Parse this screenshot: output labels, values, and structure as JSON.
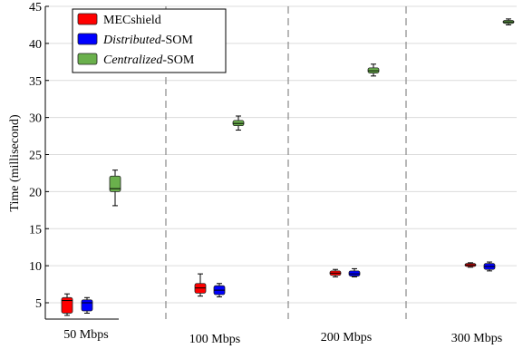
{
  "chart_data": {
    "type": "box",
    "ylabel": "Time (millisecond)",
    "xlabel": "",
    "ylim": [
      2.8,
      45
    ],
    "yticks": [
      5,
      10,
      15,
      20,
      25,
      30,
      35,
      40,
      45
    ],
    "grid": true,
    "legend_position": "top-left",
    "categories": [
      "50 Mbps",
      "100 Mbps",
      "200 Mbps",
      "300 Mbps"
    ],
    "series": [
      {
        "name": "MECshield",
        "name_parts": [
          {
            "text": "MECshield",
            "italic": false
          }
        ],
        "color": "#ff0000",
        "boxes": [
          {
            "min": 3.3,
            "q1": 3.6,
            "median": 5.3,
            "q3": 5.7,
            "max": 6.2
          },
          {
            "min": 5.9,
            "q1": 6.3,
            "median": 7.0,
            "q3": 7.6,
            "max": 8.9
          },
          {
            "min": 8.5,
            "q1": 8.7,
            "median": 9.0,
            "q3": 9.3,
            "max": 9.5
          },
          {
            "min": 9.8,
            "q1": 9.9,
            "median": 10.1,
            "q3": 10.3,
            "max": 10.4
          }
        ]
      },
      {
        "name": "Distributed-SOM",
        "name_parts": [
          {
            "text": "Distributed",
            "italic": true
          },
          {
            "text": "-SOM",
            "italic": false
          }
        ],
        "color": "#0000ff",
        "boxes": [
          {
            "min": 3.6,
            "q1": 3.9,
            "median": 5.0,
            "q3": 5.4,
            "max": 5.7
          },
          {
            "min": 5.8,
            "q1": 6.1,
            "median": 6.7,
            "q3": 7.3,
            "max": 7.6
          },
          {
            "min": 8.5,
            "q1": 8.6,
            "median": 8.9,
            "q3": 9.3,
            "max": 9.6
          },
          {
            "min": 9.3,
            "q1": 9.5,
            "median": 9.9,
            "q3": 10.3,
            "max": 10.5
          }
        ]
      },
      {
        "name": "Centralized-SOM",
        "name_parts": [
          {
            "text": "Centralized",
            "italic": true
          },
          {
            "text": "-SOM",
            "italic": false
          }
        ],
        "color": "#6ab04c",
        "boxes": [
          {
            "min": 18.1,
            "q1": 20.0,
            "median": 20.4,
            "q3": 22.1,
            "max": 22.9
          },
          {
            "min": 28.3,
            "q1": 28.9,
            "median": 29.2,
            "q3": 29.6,
            "max": 30.2
          },
          {
            "min": 35.6,
            "q1": 36.0,
            "median": 36.3,
            "q3": 36.7,
            "max": 37.2
          },
          {
            "min": 42.5,
            "q1": 42.7,
            "median": 42.9,
            "q3": 43.1,
            "max": 43.3
          }
        ]
      }
    ]
  }
}
